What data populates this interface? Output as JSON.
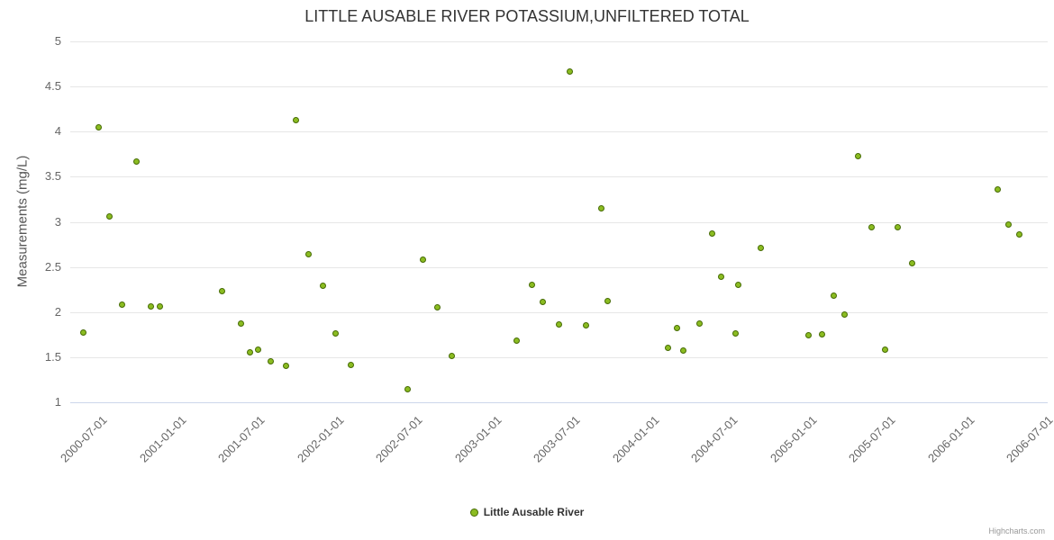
{
  "title": "LITTLE AUSABLE RIVER POTASSIUM,UNFILTERED TOTAL",
  "legend": {
    "label": "Little Ausable River"
  },
  "credits": "Highcharts.com",
  "colors": {
    "series": "#8bbc21",
    "series_border": "#466b05",
    "grid": "#e6e6e6",
    "axis_line": "#ccd6eb",
    "title_text": "#333333",
    "tick_text": "#666666"
  },
  "chart_data": {
    "type": "scatter",
    "title": "LITTLE AUSABLE RIVER POTASSIUM,UNFILTERED TOTAL",
    "xlabel": "",
    "ylabel": "Measurements (mg/L)",
    "ylim": [
      1,
      5
    ],
    "xlim": [
      2000.31,
      2006.51
    ],
    "grid": "horizontal",
    "legend_position": "bottom",
    "y_ticks": [
      1,
      1.5,
      2,
      2.5,
      3,
      3.5,
      4,
      4.5,
      5
    ],
    "x_ticks": [
      {
        "label": "2000-07-01",
        "value": 2000.5
      },
      {
        "label": "2001-01-01",
        "value": 2001.0
      },
      {
        "label": "2001-07-01",
        "value": 2001.5
      },
      {
        "label": "2002-01-01",
        "value": 2002.0
      },
      {
        "label": "2002-07-01",
        "value": 2002.5
      },
      {
        "label": "2003-01-01",
        "value": 2003.0
      },
      {
        "label": "2003-07-01",
        "value": 2003.5
      },
      {
        "label": "2004-01-01",
        "value": 2004.0
      },
      {
        "label": "2004-07-01",
        "value": 2004.5
      },
      {
        "label": "2005-01-01",
        "value": 2005.0
      },
      {
        "label": "2005-07-01",
        "value": 2005.5
      },
      {
        "label": "2006-01-01",
        "value": 2006.0
      },
      {
        "label": "2006-07-01",
        "value": 2006.5
      }
    ],
    "series": [
      {
        "name": "Little Ausable River",
        "color": "#8bbc21",
        "points": [
          [
            2000.39,
            1.77
          ],
          [
            2000.49,
            4.05
          ],
          [
            2000.56,
            3.06
          ],
          [
            2000.64,
            2.08
          ],
          [
            2000.73,
            3.67
          ],
          [
            2000.82,
            2.06
          ],
          [
            2000.88,
            2.06
          ],
          [
            2001.27,
            2.23
          ],
          [
            2001.39,
            1.87
          ],
          [
            2001.45,
            1.55
          ],
          [
            2001.5,
            1.58
          ],
          [
            2001.58,
            1.45
          ],
          [
            2001.68,
            1.4
          ],
          [
            2001.74,
            4.13
          ],
          [
            2001.82,
            2.64
          ],
          [
            2001.91,
            2.29
          ],
          [
            2001.99,
            1.76
          ],
          [
            2002.09,
            1.41
          ],
          [
            2002.45,
            1.14
          ],
          [
            2002.55,
            2.58
          ],
          [
            2002.64,
            2.05
          ],
          [
            2002.73,
            1.51
          ],
          [
            2003.14,
            1.68
          ],
          [
            2003.24,
            2.3
          ],
          [
            2003.31,
            2.11
          ],
          [
            2003.41,
            1.86
          ],
          [
            2003.48,
            4.67
          ],
          [
            2003.58,
            1.85
          ],
          [
            2003.68,
            3.15
          ],
          [
            2003.72,
            2.12
          ],
          [
            2004.1,
            1.6
          ],
          [
            2004.16,
            1.82
          ],
          [
            2004.2,
            1.57
          ],
          [
            2004.3,
            1.87
          ],
          [
            2004.38,
            2.87
          ],
          [
            2004.44,
            2.39
          ],
          [
            2004.53,
            1.76
          ],
          [
            2004.55,
            2.3
          ],
          [
            2004.69,
            2.71
          ],
          [
            2004.99,
            1.74
          ],
          [
            2005.08,
            1.75
          ],
          [
            2005.15,
            2.18
          ],
          [
            2005.22,
            1.97
          ],
          [
            2005.31,
            3.73
          ],
          [
            2005.39,
            2.94
          ],
          [
            2005.48,
            1.58
          ],
          [
            2005.56,
            2.94
          ],
          [
            2005.65,
            2.54
          ],
          [
            2006.19,
            3.36
          ],
          [
            2006.26,
            2.97
          ],
          [
            2006.33,
            2.86
          ]
        ]
      }
    ]
  }
}
